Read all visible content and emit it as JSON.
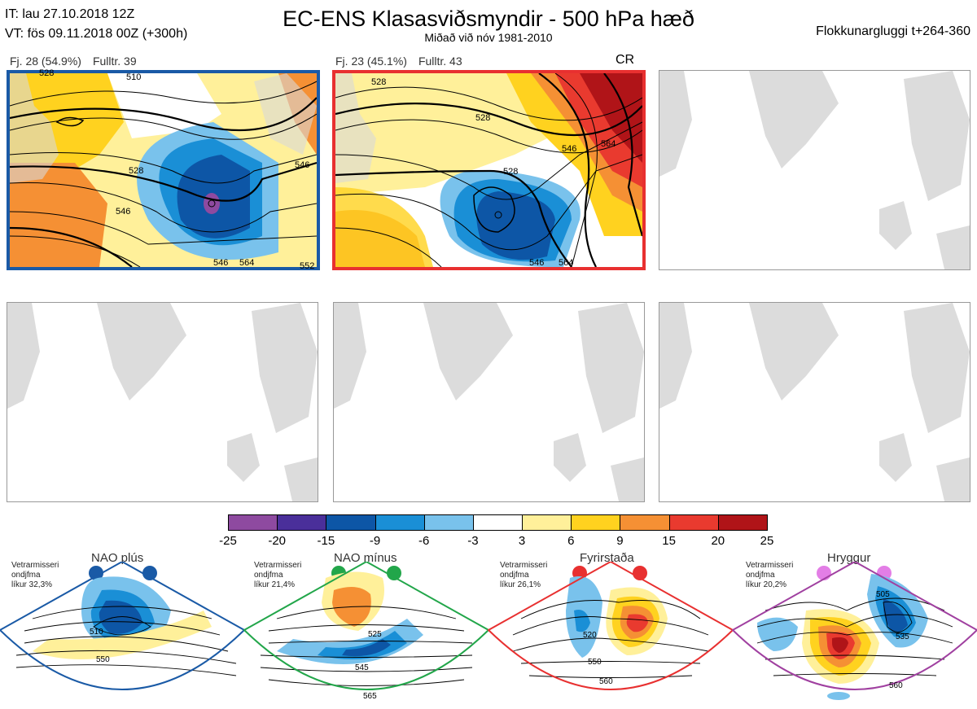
{
  "header": {
    "it": "IT: lau 27.10.2018 12Z",
    "vt": "VT: fös 09.11.2018 00Z  (+300h)",
    "title": "EC-ENS Klasasviðsmyndir - 500 hPa hæð",
    "subtitle": "Miðað við nóv 1981-2010",
    "window": "Flokkunargluggi t+264-360"
  },
  "clusters": [
    {
      "count": "Fj. 28 (54.9%)",
      "rep": "Fulltr. 39",
      "regime": "",
      "border_color": "#1a5aa6",
      "contour_labels": [
        "510",
        "528",
        "546",
        "546",
        "528",
        "546",
        "564",
        "552"
      ]
    },
    {
      "count": "Fj. 23 (45.1%)",
      "rep": "Fulltr. 43",
      "regime": "CR",
      "border_color": "#e83030",
      "contour_labels": [
        "528",
        "528",
        "528",
        "546",
        "564",
        "546",
        "564"
      ]
    }
  ],
  "colorbar": {
    "ticks": [
      "-25",
      "-20",
      "-15",
      "-9",
      "-6",
      "-3",
      "3",
      "6",
      "9",
      "15",
      "20",
      "25"
    ],
    "colors": [
      "#8e4aa0",
      "#4a2f9a",
      "#0d56a6",
      "#1a8fd6",
      "#79c2ec",
      "#ffffff",
      "#fff09a",
      "#ffd21f",
      "#f59034",
      "#e93a2f",
      "#b01418"
    ]
  },
  "regimes": [
    {
      "name": "NAO plús",
      "climate": [
        "Vetrarmisseri",
        "ondjfma",
        "líkur 32,3%"
      ],
      "color": "#1a5aa6",
      "contour_labels": [
        "510",
        "550"
      ]
    },
    {
      "name": "NAO mínus",
      "climate": [
        "Vetrarmisseri",
        "ondjfma",
        "líkur 21,4%"
      ],
      "color": "#22a64a",
      "contour_labels": [
        "525",
        "545",
        "565"
      ]
    },
    {
      "name": "Fyrirstaða",
      "climate": [
        "Vetrarmisseri",
        "ondjfma",
        "líkur 26,1%"
      ],
      "color": "#e83030",
      "contour_labels": [
        "520",
        "550",
        "560"
      ]
    },
    {
      "name": "Hryggur",
      "climate": [
        "Vetrarmisseri",
        "ondjfma",
        "líkur 20,2%"
      ],
      "color": "#a040a0",
      "contour_labels": [
        "505",
        "535",
        "560"
      ]
    }
  ]
}
